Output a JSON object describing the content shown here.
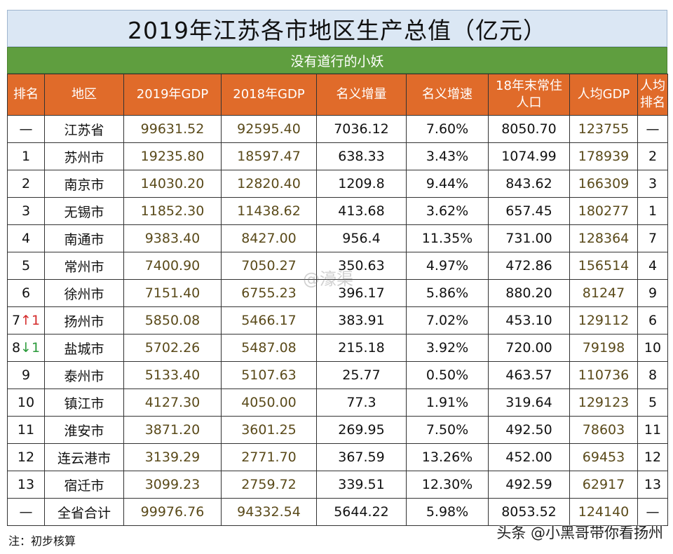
{
  "title": "2019年江苏各市地区生产总值（亿元）",
  "subtitle": "没有道行的小妖",
  "headers": [
    "排名",
    "地区",
    "2019年GDP",
    "2018年GDP",
    "名义增量",
    "名义增速",
    "18年末常住人口",
    "人均GDP",
    "人均排名"
  ],
  "header_lines": {
    "population": [
      "18年末常住",
      "人口"
    ],
    "per_capita_rank": [
      "人均",
      "排名"
    ]
  },
  "rows": [
    {
      "rank": "—",
      "rank_change": "",
      "region": "江苏省",
      "gdp2019": "99631.52",
      "gdp2018": "92595.40",
      "increment": "7036.12",
      "growth": "7.60%",
      "population": "8050.70",
      "per_capita": "123755",
      "pc_rank": "—"
    },
    {
      "rank": "1",
      "rank_change": "",
      "region": "苏州市",
      "gdp2019": "19235.80",
      "gdp2018": "18597.47",
      "increment": "638.33",
      "growth": "3.43%",
      "population": "1074.99",
      "per_capita": "178939",
      "pc_rank": "2"
    },
    {
      "rank": "2",
      "rank_change": "",
      "region": "南京市",
      "gdp2019": "14030.20",
      "gdp2018": "12820.40",
      "increment": "1209.8",
      "growth": "9.44%",
      "population": "843.62",
      "per_capita": "166309",
      "pc_rank": "3"
    },
    {
      "rank": "3",
      "rank_change": "",
      "region": "无锡市",
      "gdp2019": "11852.30",
      "gdp2018": "11438.62",
      "increment": "413.68",
      "growth": "3.62%",
      "population": "657.45",
      "per_capita": "180277",
      "pc_rank": "1"
    },
    {
      "rank": "4",
      "rank_change": "",
      "region": "南通市",
      "gdp2019": "9383.40",
      "gdp2018": "8427.00",
      "increment": "956.4",
      "growth": "11.35%",
      "population": "731.00",
      "per_capita": "128364",
      "pc_rank": "7"
    },
    {
      "rank": "5",
      "rank_change": "",
      "region": "常州市",
      "gdp2019": "7400.90",
      "gdp2018": "7050.27",
      "increment": "350.63",
      "growth": "4.97%",
      "population": "472.86",
      "per_capita": "156514",
      "pc_rank": "4"
    },
    {
      "rank": "6",
      "rank_change": "",
      "region": "徐州市",
      "gdp2019": "7151.40",
      "gdp2018": "6755.23",
      "increment": "396.17",
      "growth": "5.86%",
      "population": "880.20",
      "per_capita": "81247",
      "pc_rank": "9"
    },
    {
      "rank": "7",
      "rank_change": "↑1",
      "rank_dir": "up",
      "region": "扬州市",
      "gdp2019": "5850.08",
      "gdp2018": "5466.17",
      "increment": "383.91",
      "growth": "7.02%",
      "population": "453.10",
      "per_capita": "129112",
      "pc_rank": "6"
    },
    {
      "rank": "8",
      "rank_change": "↓1",
      "rank_dir": "down",
      "region": "盐城市",
      "gdp2019": "5702.26",
      "gdp2018": "5487.08",
      "increment": "215.18",
      "growth": "3.92%",
      "population": "720.00",
      "per_capita": "79198",
      "pc_rank": "10"
    },
    {
      "rank": "9",
      "rank_change": "",
      "region": "泰州市",
      "gdp2019": "5133.40",
      "gdp2018": "5107.63",
      "increment": "25.77",
      "growth": "0.50%",
      "population": "463.57",
      "per_capita": "110736",
      "pc_rank": "8"
    },
    {
      "rank": "10",
      "rank_change": "",
      "region": "镇江市",
      "gdp2019": "4127.30",
      "gdp2018": "4050.00",
      "increment": "77.3",
      "growth": "1.91%",
      "population": "319.64",
      "per_capita": "129123",
      "pc_rank": "5"
    },
    {
      "rank": "11",
      "rank_change": "",
      "region": "淮安市",
      "gdp2019": "3871.20",
      "gdp2018": "3601.25",
      "increment": "269.95",
      "growth": "7.50%",
      "population": "492.50",
      "per_capita": "78603",
      "pc_rank": "11"
    },
    {
      "rank": "12",
      "rank_change": "",
      "region": "连云港市",
      "gdp2019": "3139.29",
      "gdp2018": "2771.70",
      "increment": "367.59",
      "growth": "13.26%",
      "population": "452.00",
      "per_capita": "69453",
      "pc_rank": "12"
    },
    {
      "rank": "13",
      "rank_change": "",
      "region": "宿迁市",
      "gdp2019": "3099.23",
      "gdp2018": "2759.72",
      "increment": "339.51",
      "growth": "12.30%",
      "population": "492.59",
      "per_capita": "62917",
      "pc_rank": "13"
    },
    {
      "rank": "—",
      "rank_change": "",
      "region": "全省合计",
      "gdp2019": "99976.76",
      "gdp2018": "94332.54",
      "increment": "5644.22",
      "growth": "5.98%",
      "population": "8053.52",
      "per_capita": "124140",
      "pc_rank": "—"
    }
  ],
  "note": "注：初步核算",
  "credit": "头条 @小黑哥带你看扬州",
  "watermark": "@濠渠",
  "colors": {
    "title_bg": "#dbe7f4",
    "subtitle_bg": "#5f9e3f",
    "header_bg": "#e06b2a",
    "rank_up": "#d42a2a",
    "rank_down": "#2a9a3a"
  }
}
